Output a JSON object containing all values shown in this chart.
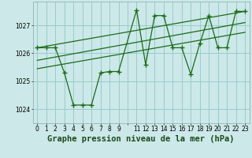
{
  "background_color": "#cce8e8",
  "grid_color": "#99cccc",
  "line_color": "#1a6b1a",
  "marker_color": "#1a6b1a",
  "xlabel": "Graphe pression niveau de la mer (hPa)",
  "ylim": [
    1023.5,
    1027.85
  ],
  "yticks": [
    1024,
    1025,
    1026,
    1027
  ],
  "series1_x": [
    0,
    1,
    2,
    3,
    4,
    5,
    6,
    7,
    8,
    9,
    11,
    12,
    13,
    14,
    15,
    16,
    17,
    18,
    19,
    20,
    21,
    22,
    23
  ],
  "series1_y": [
    1026.2,
    1026.2,
    1026.2,
    1025.3,
    1024.15,
    1024.15,
    1024.15,
    1025.3,
    1025.35,
    1025.35,
    1027.55,
    1025.6,
    1027.35,
    1027.35,
    1026.2,
    1026.2,
    1025.25,
    1026.35,
    1027.35,
    1026.2,
    1026.2,
    1027.5,
    1027.5
  ],
  "series2_x": [
    0,
    23
  ],
  "series2_y": [
    1026.2,
    1027.5
  ],
  "series3_x": [
    0,
    23
  ],
  "series3_y": [
    1025.75,
    1027.1
  ],
  "series4_x": [
    0,
    23
  ],
  "series4_y": [
    1025.45,
    1026.75
  ],
  "xlim": [
    -0.5,
    23.5
  ],
  "xtick_labels": [
    "0",
    "1",
    "2",
    "3",
    "4",
    "5",
    "6",
    "7",
    "8",
    "9",
    "",
    "11",
    "12",
    "13",
    "14",
    "15",
    "16",
    "17",
    "18",
    "19",
    "20",
    "21",
    "22",
    "23"
  ],
  "xtick_positions": [
    0,
    1,
    2,
    3,
    4,
    5,
    6,
    7,
    8,
    9,
    10,
    11,
    12,
    13,
    14,
    15,
    16,
    17,
    18,
    19,
    20,
    21,
    22,
    23
  ],
  "xlabel_fontsize": 7.5,
  "tick_fontsize": 5.5
}
